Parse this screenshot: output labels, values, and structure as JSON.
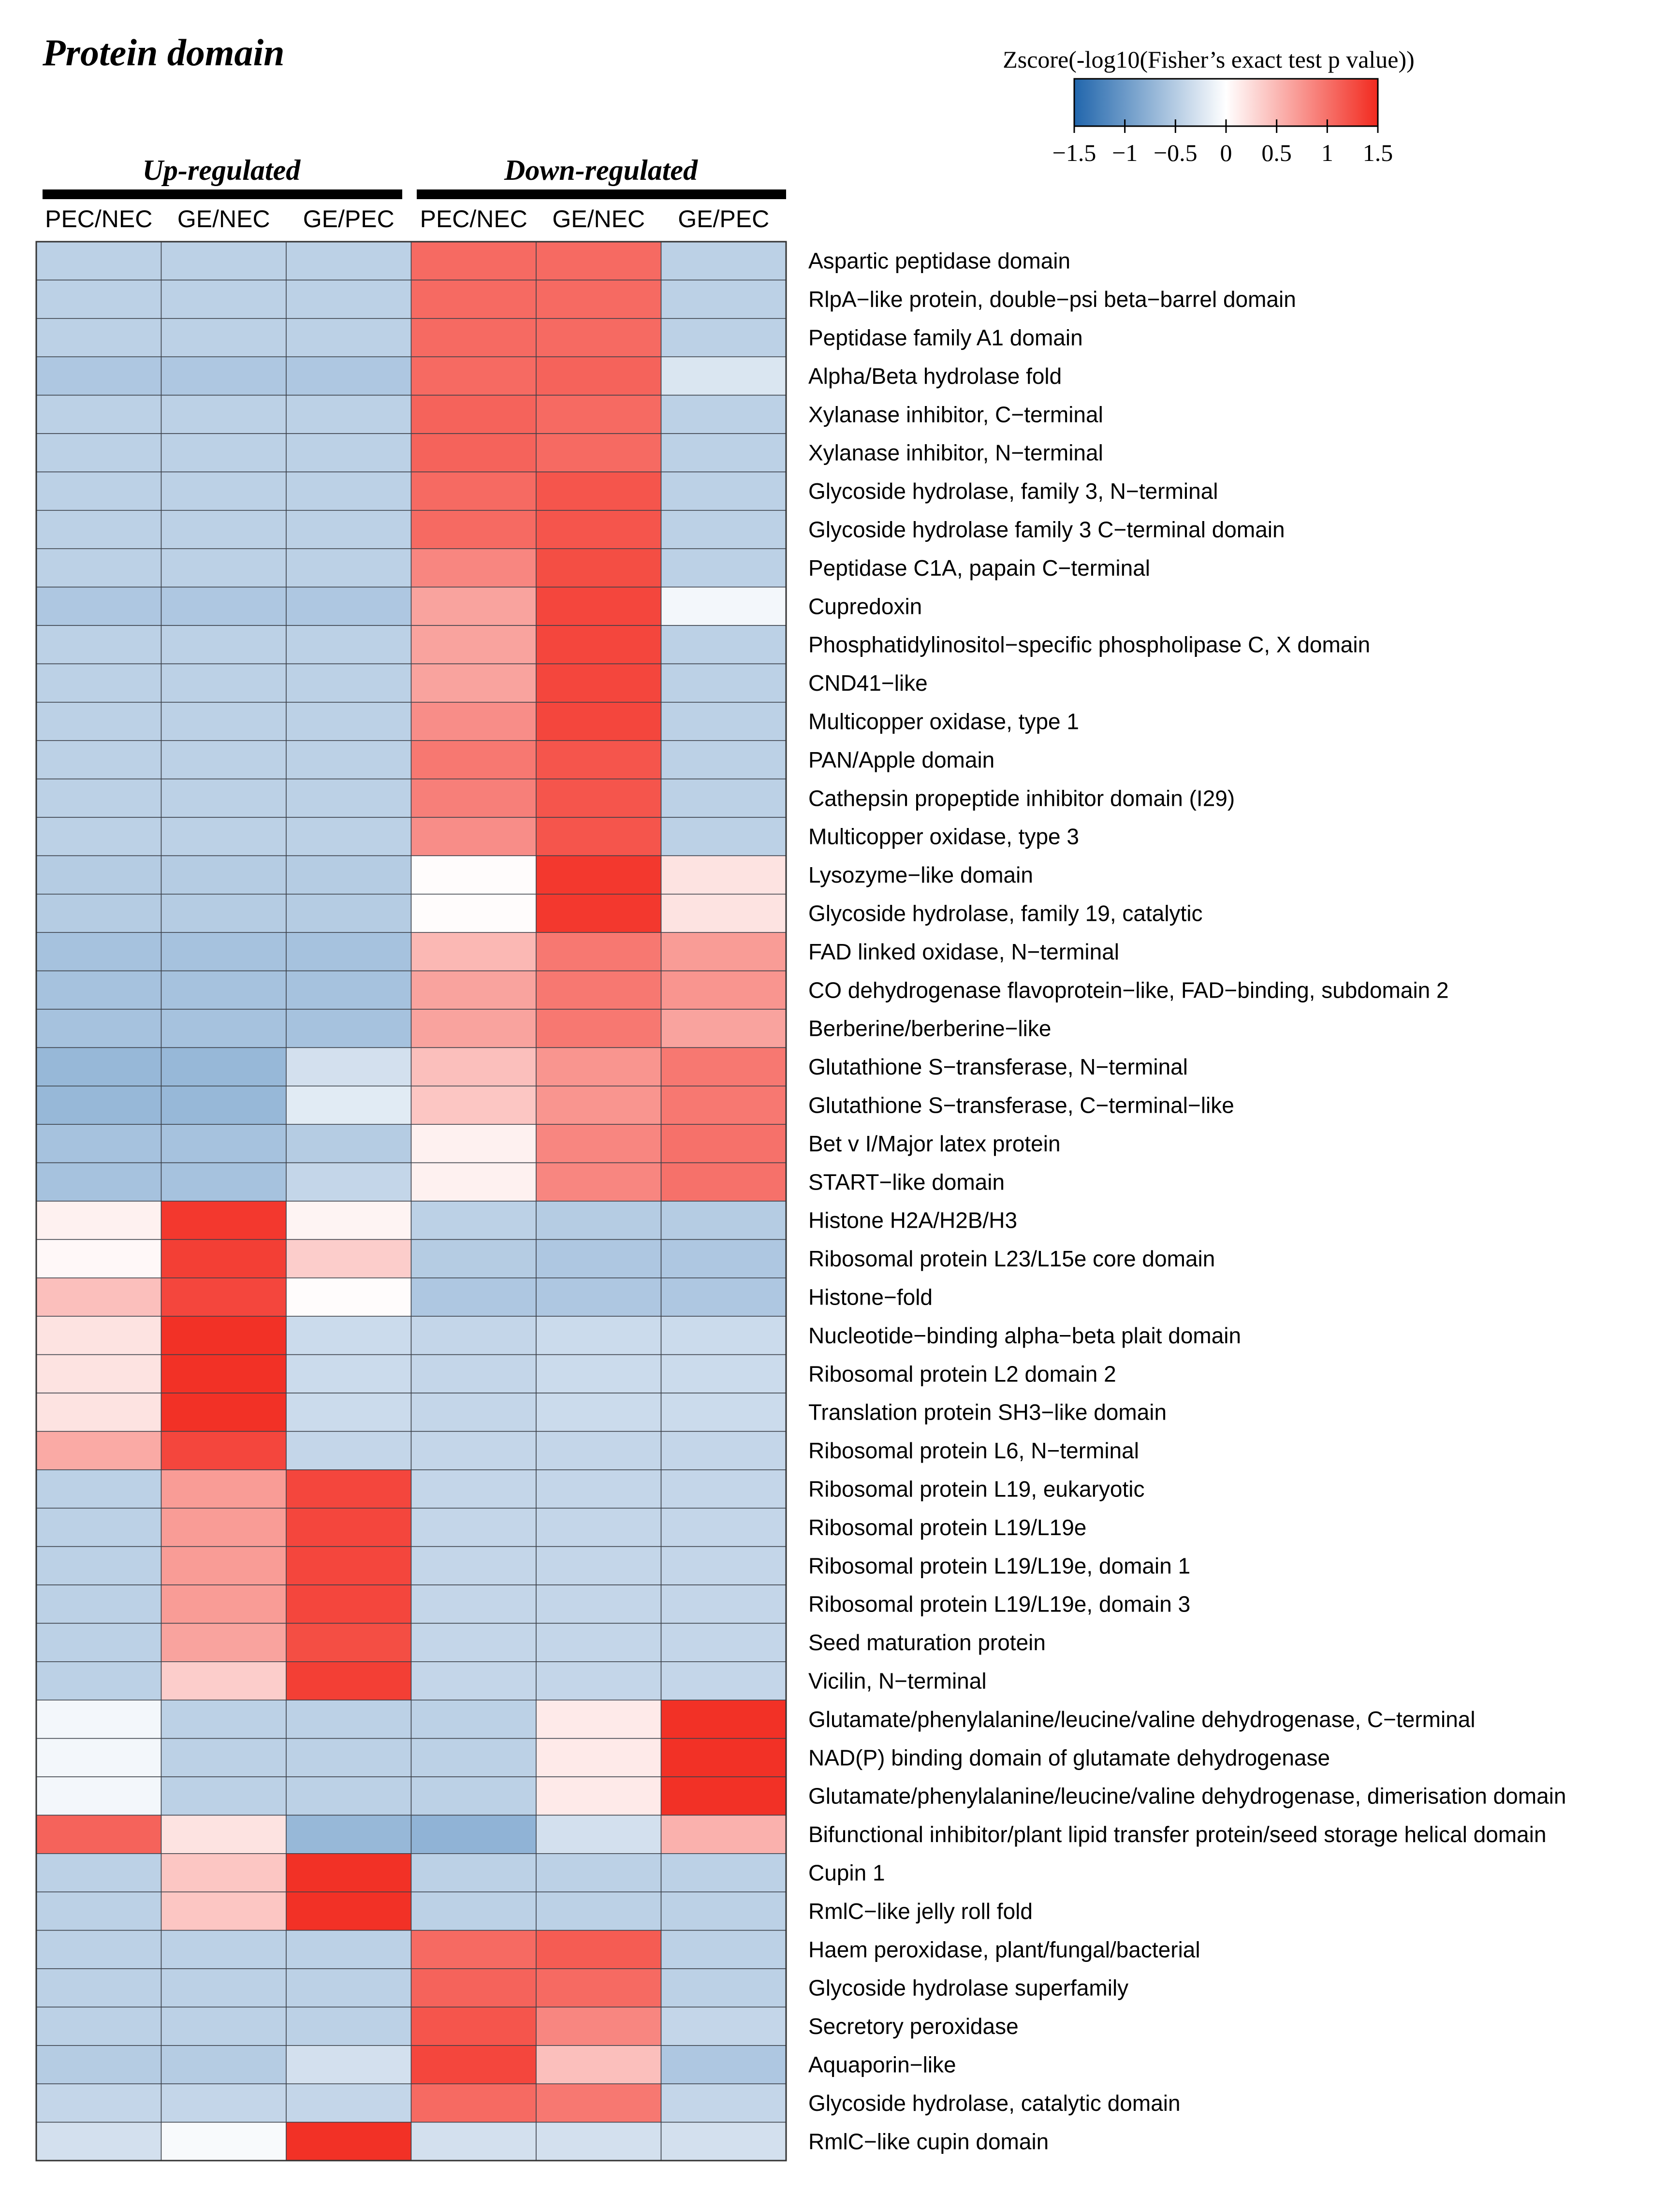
{
  "chart_data": {
    "type": "heatmap",
    "title": "Protein domain",
    "legend": {
      "title": "Zscore(-log10(Fisher’s exact test p value))",
      "range": [
        -1.5,
        1.5
      ],
      "ticks": [
        -1.5,
        -1,
        -0.5,
        0,
        0.5,
        1,
        1.5
      ],
      "tick_labels": [
        "−1.5",
        "−1",
        "−0.5",
        "0",
        "0.5",
        "1",
        "1.5"
      ],
      "low_color": "#2166ac",
      "mid_color": "#ffffff",
      "high_color": "#f22a1f",
      "placement": "top-right"
    },
    "groups": [
      {
        "label": "Up-regulated",
        "columns": [
          0,
          1,
          2
        ]
      },
      {
        "label": "Down-regulated",
        "columns": [
          3,
          4,
          5
        ]
      }
    ],
    "columns": [
      "PEC/NEC",
      "GE/NEC",
      "GE/PEC",
      "PEC/NEC",
      "GE/NEC",
      "GE/PEC"
    ],
    "rows": [
      "Aspartic peptidase domain",
      "RlpA−like protein, double−psi beta−barrel domain",
      "Peptidase family A1 domain",
      "Alpha/Beta hydrolase fold",
      "Xylanase inhibitor, C−terminal",
      "Xylanase inhibitor, N−terminal",
      "Glycoside hydrolase, family 3, N−terminal",
      "Glycoside hydrolase family 3 C−terminal domain",
      "Peptidase C1A, papain C−terminal",
      "Cupredoxin",
      "Phosphatidylinositol−specific phospholipase C, X domain",
      "CND41−like",
      "Multicopper oxidase, type 1",
      "PAN/Apple domain",
      "Cathepsin propeptide inhibitor domain (I29)",
      "Multicopper oxidase, type 3",
      "Lysozyme−like domain",
      "Glycoside hydrolase, family 19, catalytic",
      "FAD linked oxidase, N−terminal",
      "CO dehydrogenase flavoprotein−like, FAD−binding, subdomain 2",
      "Berberine/berberine−like",
      "Glutathione S−transferase, N−terminal",
      "Glutathione S−transferase, C−terminal−like",
      "Bet v I/Major latex protein",
      "START−like domain",
      "Histone H2A/H2B/H3",
      "Ribosomal protein L23/L15e core domain",
      "Histone−fold",
      "Nucleotide−binding alpha−beta plait domain",
      "Ribosomal protein L2 domain 2",
      "Translation protein SH3−like domain",
      "Ribosomal protein L6, N−terminal",
      "Ribosomal protein L19, eukaryotic",
      "Ribosomal protein L19/L19e",
      "Ribosomal protein L19/L19e, domain 1",
      "Ribosomal protein L19/L19e, domain 3",
      "Seed maturation protein",
      "Vicilin, N−terminal",
      "Glutamate/phenylalanine/leucine/valine dehydrogenase, C−terminal",
      "NAD(P) binding domain of glutamate dehydrogenase",
      "Glutamate/phenylalanine/leucine/valine dehydrogenase, dimerisation domain",
      "Bifunctional inhibitor/plant lipid transfer protein/seed storage helical domain",
      "Cupin 1",
      "RmlC−like jelly roll fold",
      "Haem peroxidase, plant/fungal/bacterial",
      "Glycoside hydrolase superfamily",
      "Secretory peroxidase",
      "Aquaporin−like",
      "Glycoside hydrolase, catalytic domain",
      "RmlC−like cupin domain"
    ],
    "values": [
      [
        -0.45,
        -0.45,
        -0.45,
        1.05,
        1.05,
        -0.45
      ],
      [
        -0.45,
        -0.45,
        -0.45,
        1.05,
        1.05,
        -0.45
      ],
      [
        -0.45,
        -0.45,
        -0.45,
        1.05,
        1.05,
        -0.45
      ],
      [
        -0.55,
        -0.55,
        -0.55,
        1.05,
        1.1,
        -0.25
      ],
      [
        -0.45,
        -0.45,
        -0.45,
        1.1,
        1.05,
        -0.45
      ],
      [
        -0.45,
        -0.45,
        -0.45,
        1.1,
        1.05,
        -0.45
      ],
      [
        -0.45,
        -0.45,
        -0.45,
        1.05,
        1.2,
        -0.45
      ],
      [
        -0.45,
        -0.45,
        -0.45,
        1.05,
        1.2,
        -0.45
      ],
      [
        -0.45,
        -0.45,
        -0.45,
        0.85,
        1.25,
        -0.45
      ],
      [
        -0.55,
        -0.55,
        -0.55,
        0.65,
        1.3,
        -0.08
      ],
      [
        -0.45,
        -0.45,
        -0.45,
        0.65,
        1.3,
        -0.45
      ],
      [
        -0.45,
        -0.45,
        -0.45,
        0.65,
        1.3,
        -0.45
      ],
      [
        -0.45,
        -0.45,
        -0.45,
        0.8,
        1.3,
        -0.45
      ],
      [
        -0.45,
        -0.45,
        -0.45,
        0.95,
        1.2,
        -0.45
      ],
      [
        -0.45,
        -0.45,
        -0.45,
        0.9,
        1.2,
        -0.45
      ],
      [
        -0.45,
        -0.45,
        -0.45,
        0.8,
        1.2,
        -0.45
      ],
      [
        -0.5,
        -0.5,
        -0.5,
        0.02,
        1.4,
        0.2
      ],
      [
        -0.5,
        -0.5,
        -0.5,
        0.02,
        1.4,
        0.2
      ],
      [
        -0.6,
        -0.6,
        -0.6,
        0.5,
        0.95,
        0.7
      ],
      [
        -0.6,
        -0.6,
        -0.6,
        0.65,
        0.95,
        0.75
      ],
      [
        -0.6,
        -0.6,
        -0.6,
        0.65,
        0.95,
        0.65
      ],
      [
        -0.7,
        -0.7,
        -0.3,
        0.45,
        0.75,
        0.95
      ],
      [
        -0.7,
        -0.7,
        -0.2,
        0.4,
        0.75,
        0.95
      ],
      [
        -0.6,
        -0.6,
        -0.5,
        0.1,
        0.85,
        1.0
      ],
      [
        -0.6,
        -0.6,
        -0.4,
        0.1,
        0.85,
        1.0
      ],
      [
        0.1,
        1.4,
        0.08,
        -0.45,
        -0.5,
        -0.5
      ],
      [
        0.05,
        1.35,
        0.35,
        -0.5,
        -0.55,
        -0.55
      ],
      [
        0.45,
        1.3,
        0.02,
        -0.55,
        -0.55,
        -0.55
      ],
      [
        0.2,
        1.45,
        -0.35,
        -0.4,
        -0.35,
        -0.35
      ],
      [
        0.2,
        1.45,
        -0.35,
        -0.4,
        -0.35,
        -0.35
      ],
      [
        0.2,
        1.45,
        -0.35,
        -0.4,
        -0.35,
        -0.35
      ],
      [
        0.6,
        1.3,
        -0.4,
        -0.4,
        -0.4,
        -0.4
      ],
      [
        -0.45,
        0.7,
        1.3,
        -0.4,
        -0.4,
        -0.4
      ],
      [
        -0.45,
        0.7,
        1.3,
        -0.4,
        -0.4,
        -0.4
      ],
      [
        -0.45,
        0.7,
        1.3,
        -0.4,
        -0.4,
        -0.4
      ],
      [
        -0.45,
        0.7,
        1.3,
        -0.4,
        -0.4,
        -0.4
      ],
      [
        -0.45,
        0.65,
        1.25,
        -0.4,
        -0.4,
        -0.4
      ],
      [
        -0.45,
        0.35,
        1.35,
        -0.4,
        -0.4,
        -0.4
      ],
      [
        -0.08,
        -0.45,
        -0.45,
        -0.45,
        0.15,
        1.45
      ],
      [
        -0.08,
        -0.45,
        -0.45,
        -0.45,
        0.15,
        1.45
      ],
      [
        -0.08,
        -0.45,
        -0.45,
        -0.45,
        0.15,
        1.45
      ],
      [
        1.1,
        0.2,
        -0.7,
        -0.75,
        -0.3,
        0.55
      ],
      [
        -0.45,
        0.4,
        1.45,
        -0.45,
        -0.45,
        -0.45
      ],
      [
        -0.45,
        0.4,
        1.45,
        -0.45,
        -0.45,
        -0.45
      ],
      [
        -0.45,
        -0.45,
        -0.45,
        1.05,
        1.15,
        -0.45
      ],
      [
        -0.45,
        -0.45,
        -0.45,
        1.1,
        1.05,
        -0.45
      ],
      [
        -0.45,
        -0.45,
        -0.45,
        1.2,
        0.85,
        -0.4
      ],
      [
        -0.5,
        -0.5,
        -0.3,
        1.3,
        0.45,
        -0.55
      ],
      [
        -0.4,
        -0.4,
        -0.4,
        1.05,
        0.95,
        -0.4
      ],
      [
        -0.3,
        -0.05,
        1.45,
        -0.3,
        -0.3,
        -0.3
      ]
    ]
  }
}
